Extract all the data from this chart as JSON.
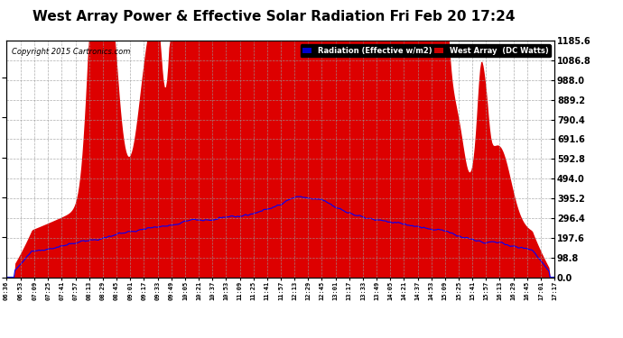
{
  "title": "West Array Power & Effective Solar Radiation Fri Feb 20 17:24",
  "copyright": "Copyright 2015 Cartronics.com",
  "legend_radiation": "Radiation (Effective w/m2)",
  "legend_west": "West Array  (DC Watts)",
  "legend_radiation_bg": "#0000cc",
  "legend_west_bg": "#cc0000",
  "ymax": 1185.6,
  "ymin": 0.0,
  "ytick_interval": 98.8,
  "background_color": "#ffffff",
  "plot_bg": "#ffffff",
  "grid_color": "#aaaaaa",
  "fill_color": "#dd0000",
  "line_color": "#0000ff",
  "x_labels": [
    "06:36",
    "06:53",
    "07:09",
    "07:25",
    "07:41",
    "07:57",
    "08:13",
    "08:29",
    "08:45",
    "09:01",
    "09:17",
    "09:33",
    "09:49",
    "10:05",
    "10:21",
    "10:37",
    "10:53",
    "11:09",
    "11:25",
    "11:41",
    "11:57",
    "12:13",
    "12:29",
    "12:45",
    "13:01",
    "13:17",
    "13:33",
    "13:49",
    "14:05",
    "14:21",
    "14:37",
    "14:53",
    "15:09",
    "15:25",
    "15:41",
    "15:57",
    "16:13",
    "16:29",
    "16:45",
    "17:01",
    "17:17"
  ],
  "title_fontsize": 11,
  "copyright_fontsize": 6,
  "ytick_fontsize": 7,
  "xtick_fontsize": 5
}
